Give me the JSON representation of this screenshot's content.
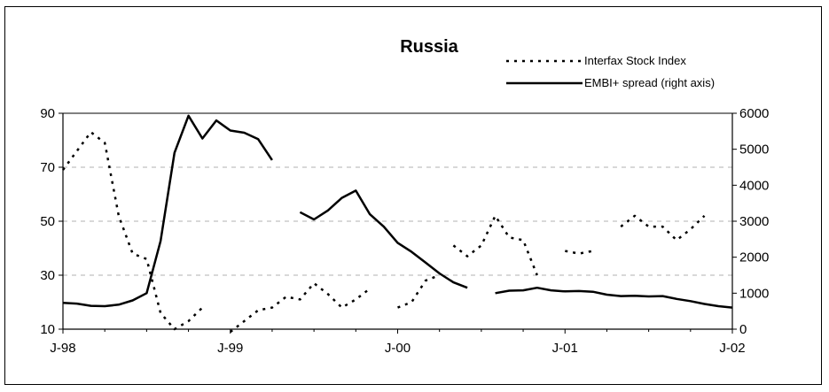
{
  "chart_data": {
    "type": "line",
    "title": "Russia",
    "x_tick_labels": [
      "J-98",
      "J-99",
      "J-00",
      "J-01",
      "J-02"
    ],
    "left_axis": {
      "ylim": [
        10,
        90
      ],
      "ticks": [
        10,
        30,
        50,
        70,
        90
      ]
    },
    "right_axis": {
      "ylim": [
        0,
        6000
      ],
      "ticks": [
        0,
        1000,
        2000,
        3000,
        4000,
        5000,
        6000
      ]
    },
    "grid": "horizontal dashed",
    "legend_position": "top-right",
    "x_start_label": "J-98",
    "x_unit": "month",
    "series": [
      {
        "name": "Interfax Stock Index",
        "axis": "left",
        "style": "dotted",
        "color": "#000000",
        "segments": [
          {
            "x": [
              0,
              1,
              2,
              3,
              4,
              5,
              6,
              7,
              8,
              9,
              10,
              11,
              12
            ],
            "y": [
              69,
              76,
              83,
              79,
              52,
              38,
              36,
              16,
              10,
              13,
              18,
              null,
              null
            ]
          },
          {
            "x": [
              12,
              13,
              14,
              15,
              16,
              17,
              18,
              19,
              20,
              21,
              22,
              23
            ],
            "y": [
              9,
              13,
              17,
              18,
              22,
              21,
              27,
              23,
              18,
              21,
              25,
              null
            ]
          },
          {
            "x": [
              24,
              25,
              26,
              27
            ],
            "y": [
              18,
              20,
              28,
              30
            ]
          },
          {
            "x": [
              28,
              29,
              30,
              31,
              32,
              33,
              34,
              35,
              36
            ],
            "y": [
              41,
              37,
              41,
              52,
              44,
              43,
              30,
              null,
              null
            ]
          },
          {
            "x": [
              36,
              37,
              38
            ],
            "y": [
              39,
              38,
              39
            ]
          },
          {
            "x": [
              40,
              41,
              42,
              43,
              44,
              45,
              46,
              47
            ],
            "y": [
              48,
              52,
              48,
              48,
              43,
              47,
              52,
              null
            ]
          }
        ]
      },
      {
        "name": "EMBI+ spread (right axis)",
        "axis": "right",
        "style": "solid",
        "color": "#000000",
        "segments": [
          {
            "x": [
              0,
              1,
              2,
              3,
              4,
              5,
              6,
              7,
              8,
              9,
              10,
              11,
              12,
              13,
              14,
              15
            ],
            "y": [
              730,
              710,
              650,
              640,
              680,
              800,
              1000,
              2450,
              4900,
              5930,
              5300,
              5800,
              5520,
              5460,
              5280,
              4700
            ]
          },
          {
            "x": [
              17,
              18,
              19,
              20,
              21,
              22,
              23,
              24,
              25,
              26,
              27,
              28,
              29
            ],
            "y": [
              3250,
              3050,
              3300,
              3650,
              3850,
              3200,
              2850,
              2400,
              2150,
              1850,
              1550,
              1300,
              1150
            ]
          },
          {
            "x": [
              31,
              32,
              33,
              34,
              35,
              36,
              37,
              38,
              39,
              40,
              41,
              42,
              43,
              44,
              45,
              46,
              47,
              48
            ],
            "y": [
              1000,
              1070,
              1080,
              1150,
              1080,
              1050,
              1060,
              1040,
              960,
              920,
              930,
              910,
              920,
              840,
              780,
              700,
              640,
              600
            ]
          }
        ]
      }
    ]
  }
}
